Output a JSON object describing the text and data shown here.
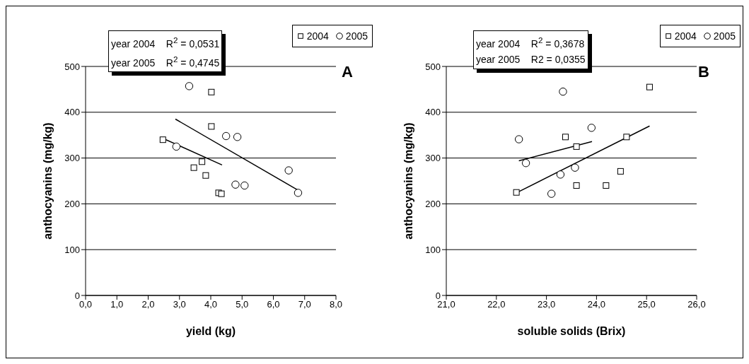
{
  "chart_data": [
    {
      "type": "scatter",
      "xlabel": "yield (kg)",
      "ylabel": "anthocyanins (mg/kg)",
      "annotations": [
        "year 2004    R$^{2}$ = 0,0531",
        "year 2005    R$^{2}$ = 0,4745",
        "A"
      ],
      "legend": "top right",
      "grid": "y",
      "xlim": [
        0,
        8
      ],
      "xticks": [
        {
          "value": 0,
          "label": "0,0"
        },
        {
          "value": 1,
          "label": "1,0"
        },
        {
          "value": 2,
          "label": "2,0"
        },
        {
          "value": 3,
          "label": "3,0"
        },
        {
          "value": 4,
          "label": "4,0"
        },
        {
          "value": 5,
          "label": "5,0"
        },
        {
          "value": 6,
          "label": "6,0"
        },
        {
          "value": 7,
          "label": "7,0"
        },
        {
          "value": 8,
          "label": "8,0"
        }
      ],
      "ylim": [
        0,
        500
      ],
      "yticks": [
        0,
        100,
        200,
        300,
        400,
        500
      ],
      "series": [
        {
          "name": "2004",
          "color": "#000000",
          "marker": "square",
          "x": [
            2.47,
            4.02,
            4.02,
            3.72,
            3.46,
            3.84,
            4.25,
            4.34
          ],
          "values": [
            340,
            444,
            369,
            292,
            279,
            262,
            224,
            222
          ]
        },
        {
          "name": "2005",
          "color": "#000000",
          "marker": "circle",
          "x": [
            3.31,
            2.9,
            4.49,
            4.85,
            4.79,
            5.08,
            6.49,
            6.79
          ],
          "values": [
            457,
            325,
            348,
            346,
            242,
            240,
            273,
            224
          ]
        },
        {
          "type": "line",
          "color": "#000000",
          "x": [
            2.47,
            4.36
          ],
          "values": [
            343,
            285
          ]
        },
        {
          "type": "line",
          "color": "#000000",
          "x": [
            2.87,
            6.81
          ],
          "values": [
            385,
            229
          ]
        }
      ]
    },
    {
      "type": "scatter",
      "xlabel": "soluble solids (Brix)",
      "ylabel": "anthocyanins (mg/kg)",
      "annotations": [
        "year 2004    R$^{2}$ = 0,3678",
        "year 2005    R2 = 0,0355",
        "B"
      ],
      "legend": "top right",
      "grid": "y",
      "xlim": [
        21,
        26
      ],
      "xticks": [
        {
          "value": 21,
          "label": "21,0"
        },
        {
          "value": 22,
          "label": "22,0"
        },
        {
          "value": 23,
          "label": "23,0"
        },
        {
          "value": 24,
          "label": "24,0"
        },
        {
          "value": 25,
          "label": "25,0"
        },
        {
          "value": 26,
          "label": "26,0"
        }
      ],
      "ylim": [
        0,
        500
      ],
      "yticks": [
        0,
        100,
        200,
        300,
        400,
        500
      ],
      "series": [
        {
          "name": "2004",
          "color": "#000000",
          "marker": "square",
          "x": [
            22.4,
            23.38,
            23.6,
            23.6,
            24.19,
            24.48,
            24.6,
            25.06
          ],
          "values": [
            225,
            346,
            325,
            240,
            240,
            271,
            346,
            455
          ]
        },
        {
          "name": "2005",
          "color": "#000000",
          "marker": "circle",
          "x": [
            22.45,
            22.59,
            23.33,
            23.9,
            23.28,
            23.57,
            23.1
          ],
          "values": [
            341,
            289,
            445,
            366,
            264,
            279,
            222
          ]
        },
        {
          "type": "line",
          "color": "#000000",
          "x": [
            22.4,
            25.06
          ],
          "values": [
            224,
            370
          ]
        },
        {
          "type": "line",
          "color": "#000000",
          "x": [
            22.45,
            23.91
          ],
          "values": [
            294,
            336
          ]
        }
      ]
    }
  ]
}
